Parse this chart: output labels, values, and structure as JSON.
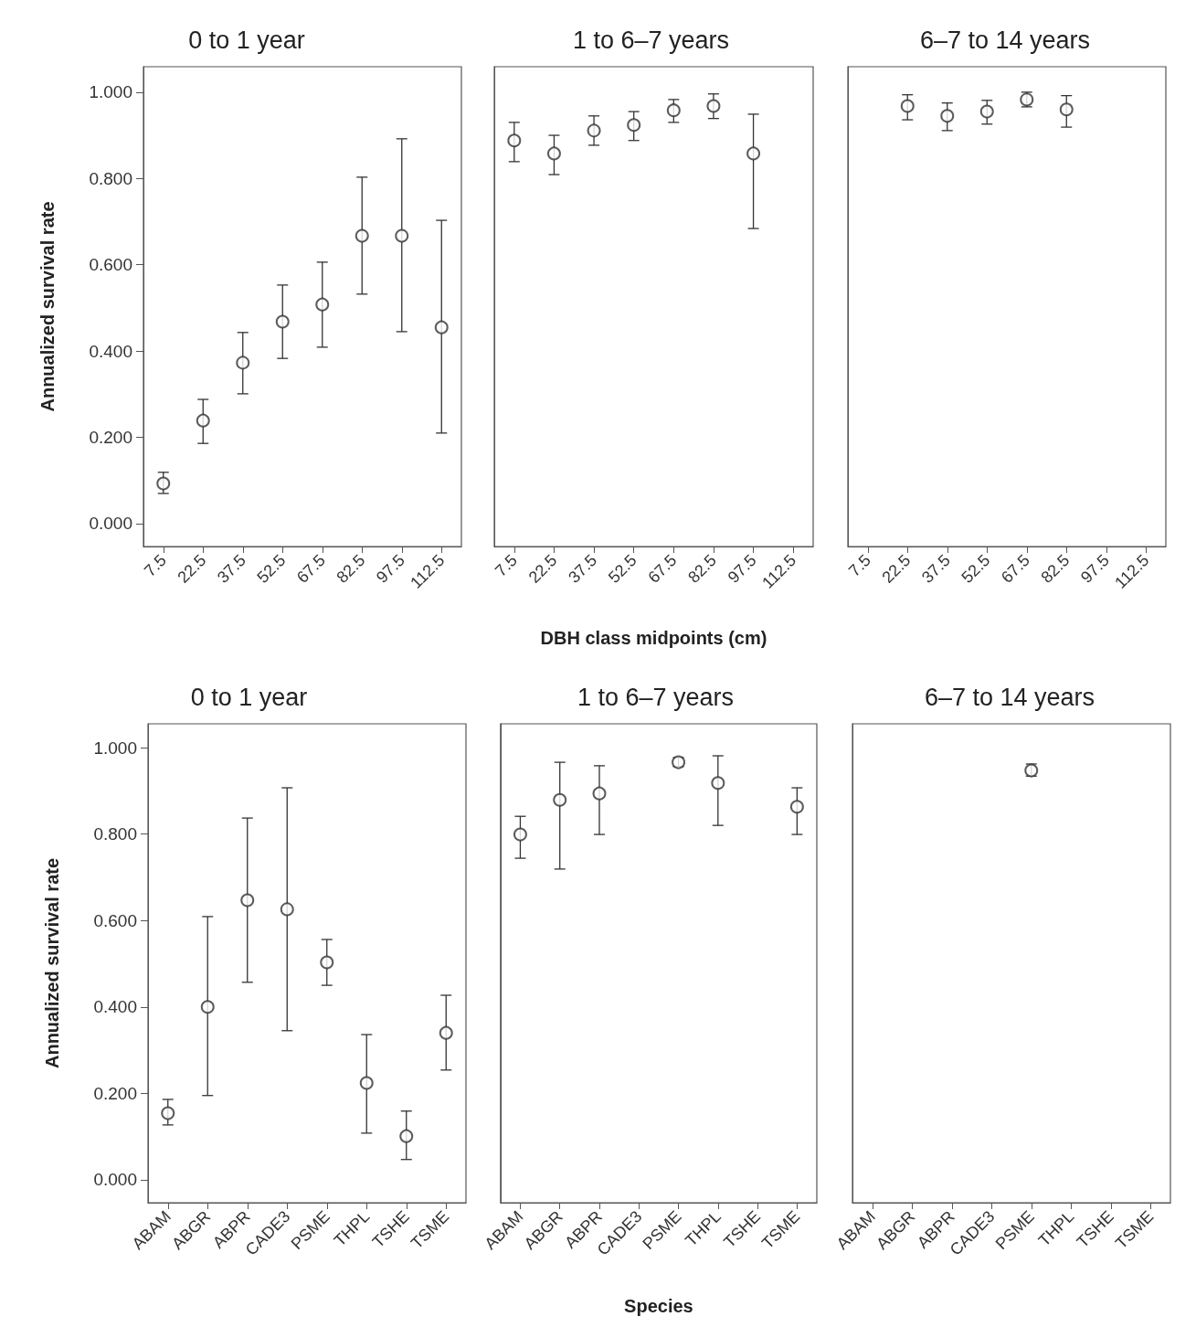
{
  "chart_data": [
    {
      "type": "scatter",
      "title": "0 to 1 year",
      "ylabel": "Annualized survival rate",
      "categories": [
        "7.5",
        "22.5",
        "37.5",
        "52.5",
        "67.5",
        "82.5",
        "97.5",
        "112.5"
      ],
      "marker": "circle",
      "color": "#333333",
      "values": [
        0.093,
        0.239,
        0.373,
        0.468,
        0.508,
        0.667,
        0.667,
        0.455
      ],
      "errors": [
        [
          0.07,
          0.119
        ],
        [
          0.186,
          0.288
        ],
        [
          0.301,
          0.443
        ],
        [
          0.383,
          0.553
        ],
        [
          0.409,
          0.606
        ],
        [
          0.532,
          0.803
        ],
        [
          0.445,
          0.892
        ],
        [
          0.21,
          0.703
        ]
      ],
      "ylim": [
        -0.053,
        1.059
      ],
      "yticks": [
        {
          "value": 0,
          "label": "0.000"
        },
        {
          "value": 0.2,
          "label": "0.200"
        },
        {
          "value": 0.4,
          "label": "0.400"
        },
        {
          "value": 0.6,
          "label": "0.600"
        },
        {
          "value": 0.8,
          "label": "0.800"
        },
        {
          "value": 1,
          "label": "1.000"
        }
      ]
    },
    {
      "type": "scatter",
      "title": "1 to 6–7 years",
      "xlabel": "DBH class midpoints (cm)",
      "categories": [
        "7.5",
        "22.5",
        "37.5",
        "52.5",
        "67.5",
        "82.5",
        "97.5",
        "112.5"
      ],
      "marker": "circle",
      "color": "#333333",
      "tick_labels": "x",
      "values": [
        0.888,
        0.858,
        0.911,
        0.924,
        0.958,
        0.968,
        0.858,
        null
      ],
      "errors": [
        [
          0.839,
          0.93
        ],
        [
          0.809,
          0.9
        ],
        [
          0.877,
          0.945
        ],
        [
          0.888,
          0.955
        ],
        [
          0.93,
          0.983
        ],
        [
          0.939,
          0.996
        ],
        [
          0.684,
          0.949
        ],
        null
      ],
      "ylim": [
        -0.053,
        1.059
      ]
    },
    {
      "type": "scatter",
      "title": "6–7 to 14 years",
      "categories": [
        "7.5",
        "22.5",
        "37.5",
        "52.5",
        "67.5",
        "82.5",
        "97.5",
        "112.5"
      ],
      "marker": "circle",
      "color": "#333333",
      "tick_labels": "x",
      "values": [
        null,
        0.968,
        0.945,
        0.955,
        0.983,
        0.96,
        null,
        null
      ],
      "errors": [
        null,
        [
          0.936,
          0.994
        ],
        [
          0.911,
          0.975
        ],
        [
          0.926,
          0.981
        ],
        [
          0.966,
          1.0
        ],
        [
          0.919,
          0.992
        ],
        null,
        null
      ],
      "ylim": [
        -0.053,
        1.059
      ]
    },
    {
      "type": "scatter",
      "title": "0 to 1 year",
      "ylabel": "Annualized survival rate",
      "categories": [
        "ABAM",
        "ABGR",
        "ABPR",
        "CADE3",
        "PSME",
        "THPL",
        "TSHE",
        "TSME"
      ],
      "marker": "circle",
      "color": "#333333",
      "values": [
        0.154,
        0.4,
        0.647,
        0.626,
        0.503,
        0.224,
        0.101,
        0.34
      ],
      "errors": [
        [
          0.127,
          0.186
        ],
        [
          0.195,
          0.609
        ],
        [
          0.457,
          0.837
        ],
        [
          0.345,
          0.907
        ],
        [
          0.45,
          0.556
        ],
        [
          0.108,
          0.336
        ],
        [
          0.047,
          0.159
        ],
        [
          0.254,
          0.427
        ]
      ],
      "ylim": [
        -0.053,
        1.055
      ],
      "yticks": [
        {
          "value": 0,
          "label": "0.000"
        },
        {
          "value": 0.2,
          "label": "0.200"
        },
        {
          "value": 0.4,
          "label": "0.400"
        },
        {
          "value": 0.6,
          "label": "0.600"
        },
        {
          "value": 0.8,
          "label": "0.800"
        },
        {
          "value": 1,
          "label": "1.000"
        }
      ]
    },
    {
      "type": "scatter",
      "title": "1 to 6–7 years",
      "xlabel": "Species",
      "categories": [
        "ABAM",
        "ABGR",
        "ABPR",
        "CADE3",
        "PSME",
        "THPL",
        "TSHE",
        "TSME"
      ],
      "marker": "circle",
      "color": "#333333",
      "tick_labels": "x",
      "values": [
        0.799,
        0.879,
        0.894,
        null,
        0.966,
        0.918,
        null,
        0.863
      ],
      "errors": [
        [
          0.744,
          0.841
        ],
        [
          0.719,
          0.966
        ],
        [
          0.799,
          0.958
        ],
        null,
        [
          0.956,
          0.977
        ],
        [
          0.82,
          0.981
        ],
        null,
        [
          0.799,
          0.907
        ]
      ],
      "ylim": [
        -0.053,
        1.055
      ]
    },
    {
      "type": "scatter",
      "title": "6–7 to 14 years",
      "categories": [
        "ABAM",
        "ABGR",
        "ABPR",
        "CADE3",
        "PSME",
        "THPL",
        "TSHE",
        "TSME"
      ],
      "marker": "circle",
      "color": "#333333",
      "tick_labels": "x",
      "values": [
        null,
        null,
        null,
        null,
        0.947,
        null,
        null,
        null
      ],
      "errors": [
        null,
        null,
        null,
        null,
        [
          0.934,
          0.962
        ],
        null,
        null,
        null
      ],
      "ylim": [
        -0.053,
        1.055
      ]
    }
  ]
}
